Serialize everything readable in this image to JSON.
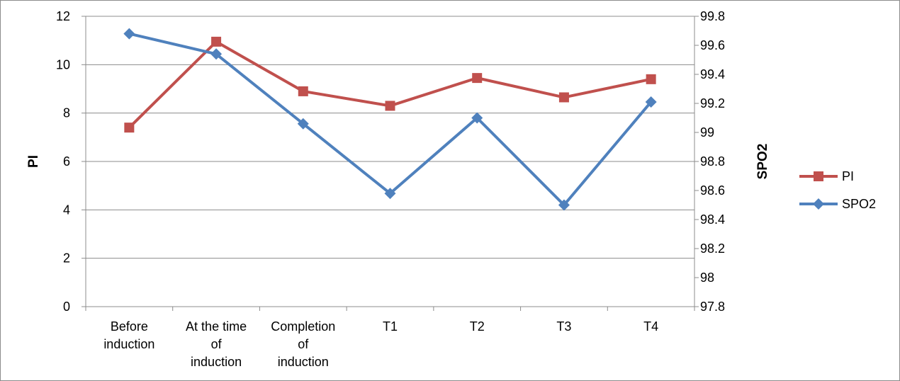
{
  "chart_data": {
    "type": "line",
    "categories": [
      [
        "Before",
        "induction"
      ],
      [
        "At the time",
        "of",
        "induction"
      ],
      [
        "Completion",
        "of",
        "induction"
      ],
      [
        "T1"
      ],
      [
        "T2"
      ],
      [
        "T3"
      ],
      [
        "T4"
      ]
    ],
    "ylabel_left": "PI",
    "ylabel_right": "SPO2",
    "left_axis": {
      "min": 0,
      "max": 12,
      "step": 2,
      "tick_labels": [
        "0",
        "2",
        "4",
        "6",
        "8",
        "10",
        "12"
      ]
    },
    "right_axis": {
      "min": 97.8,
      "max": 99.8,
      "step": 0.2,
      "tick_labels": [
        "97.8",
        "98",
        "98.2",
        "98.4",
        "98.6",
        "98.8",
        "99",
        "99.2",
        "99.4",
        "99.6",
        "99.8"
      ]
    },
    "grid": true,
    "legend_position": "right",
    "series": [
      {
        "name": "PI",
        "axis": "left",
        "color": "#c0504d",
        "marker": "square",
        "values": [
          7.4,
          10.95,
          8.9,
          8.3,
          9.45,
          8.65,
          9.4
        ]
      },
      {
        "name": "SPO2",
        "axis": "right",
        "color": "#4f81bd",
        "marker": "diamond",
        "values": [
          99.68,
          99.54,
          99.06,
          98.58,
          99.1,
          98.5,
          99.21
        ]
      }
    ]
  }
}
